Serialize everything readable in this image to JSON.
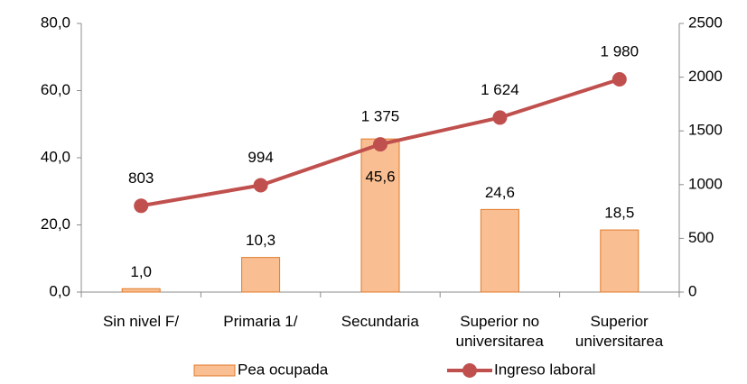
{
  "chart_data": {
    "type": "bar_line",
    "categories": [
      "Sin nivel F/",
      "Primaria 1/",
      "Secundaria",
      "Superior no universitarea",
      "Superior universitarea"
    ],
    "series": [
      {
        "name": "Pea ocupada",
        "type": "bar",
        "color": "#f9be92",
        "edge_color": "#e07b2a",
        "axis": "y",
        "values": [
          1.0,
          10.3,
          45.6,
          24.6,
          18.5
        ],
        "value_labels": [
          "1,0",
          "10,3",
          "45,6",
          "24,6",
          "18,5"
        ]
      },
      {
        "name": "Ingreso laboral",
        "type": "line",
        "color": "#c0504d",
        "axis": "y2",
        "values": [
          803,
          994,
          1375,
          1624,
          1980
        ],
        "value_labels": [
          "803",
          "994",
          "1 375",
          "1 624",
          "1 980"
        ]
      }
    ],
    "ylim": [
      0,
      80
    ],
    "yticks": [
      {
        "value": 0,
        "label": "0,0"
      },
      {
        "value": 20,
        "label": "20,0"
      },
      {
        "value": 40,
        "label": "40,0"
      },
      {
        "value": 60,
        "label": "60,0"
      },
      {
        "value": 80,
        "label": "80,0"
      }
    ],
    "y2lim": [
      0,
      2500
    ],
    "y2ticks": [
      0,
      500,
      1000,
      1500,
      2000,
      2500
    ],
    "grid": false,
    "legend": "bottom"
  }
}
